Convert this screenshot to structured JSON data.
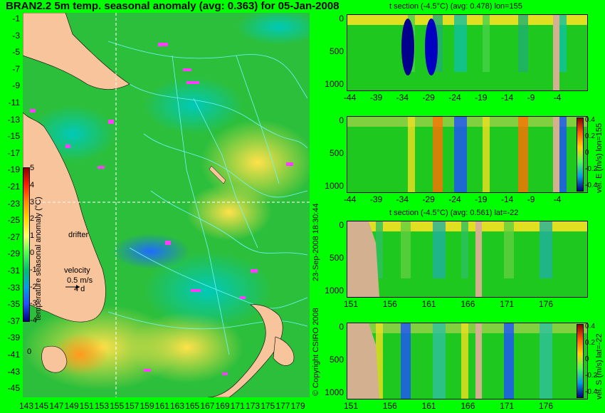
{
  "colors": {
    "background": "#00ff00",
    "land": "#f7c49b",
    "contour": "#6ff5ff",
    "magenta": "#ff3cff",
    "ocean_base": "#2dbf3a"
  },
  "map": {
    "title": "BRAN2.2 5m temp. seasonal anomaly (avg: 0.363) for 05-Jan-2008",
    "lat_labels": [
      "-1",
      "-3",
      "-5",
      "-7",
      "-9",
      "-11",
      "-13",
      "-15",
      "-17",
      "-19",
      "-21",
      "-23",
      "-25",
      "-27",
      "-29",
      "-31",
      "-33",
      "-35",
      "-37",
      "-39",
      "-41",
      "-43",
      "-45"
    ],
    "lon_labels": [
      "143",
      "145",
      "147",
      "149",
      "151",
      "153",
      "155",
      "157",
      "159",
      "161",
      "163",
      "165",
      "167",
      "169",
      "171",
      "173",
      "175",
      "177",
      "179"
    ],
    "drifter_label": "drifter",
    "velocity_label": "velocity",
    "velocity_value": "0.5 m/s",
    "velocity_days": "4 d",
    "marker_0": "0"
  },
  "colorbar": {
    "label": "temperature seasonal anomaly (°C)",
    "ticks": [
      "5",
      "4",
      "3",
      "2",
      "1",
      "0",
      "-1",
      "-2",
      "-3",
      "-4"
    ]
  },
  "right_colorbar_ticks": [
    "0.4",
    "0.2",
    "0",
    "-0.2",
    "-0.4"
  ],
  "panels": [
    {
      "title": "t section (-4.5°C) (avg: 0.478) lon=155",
      "y_ticks": [
        "0",
        "500",
        "1000"
      ],
      "x_ticks": [
        "-44",
        "-39",
        "-34",
        "-29",
        "-24",
        "-19",
        "-14",
        "-9",
        "-4"
      ],
      "side_label": ""
    },
    {
      "title": "",
      "y_ticks": [
        "0",
        "500",
        "1000"
      ],
      "x_ticks": [
        "-44",
        "-39",
        "-34",
        "-29",
        "-24",
        "-19",
        "-14",
        "-9",
        "-4"
      ],
      "side_label": "vel. E (m/s) lon=155"
    },
    {
      "title": "t section (-4.5°C) (avg: 0.561) lat=-22",
      "y_ticks": [
        "0",
        "500",
        "1000"
      ],
      "x_ticks": [
        "151",
        "156",
        "161",
        "166",
        "171",
        "176"
      ],
      "side_label": ""
    },
    {
      "title": "",
      "y_ticks": [
        "0",
        "500",
        "1000"
      ],
      "x_ticks": [
        "151",
        "156",
        "161",
        "166",
        "171",
        "176"
      ],
      "side_label": "vel. S (m/s) lat=-22"
    }
  ],
  "footer": {
    "timestamp": "23-Sep-2008 18:30:44",
    "copyright": "© Copyright CSIRO 2008"
  },
  "chart_data": [
    {
      "type": "heatmap",
      "title": "BRAN2.2 5m temp. seasonal anomaly (avg: 0.363) for 05-Jan-2008",
      "xlabel": "",
      "ylabel": "",
      "xlim": [
        143,
        180
      ],
      "ylim": [
        -45,
        0
      ],
      "colorbar_range": [
        -4,
        5
      ],
      "colorbar_label": "temperature seasonal anomaly (°C)"
    },
    {
      "type": "heatmap",
      "title": "t section (-4.5°C) (avg: 0.478) lon=155",
      "xlim": [
        -45,
        0
      ],
      "ylim": [
        1050,
        0
      ],
      "x_ticks": [
        -44,
        -39,
        -34,
        -29,
        -24,
        -19,
        -14,
        -9,
        -4
      ],
      "y_ticks": [
        0,
        500,
        1000
      ]
    },
    {
      "type": "heatmap",
      "title": "",
      "xlim": [
        -45,
        0
      ],
      "ylim": [
        1050,
        0
      ],
      "colorbar_range": [
        -0.4,
        0.4
      ],
      "colorbar_label": "vel. E (m/s) lon=155"
    },
    {
      "type": "heatmap",
      "title": "t section (-4.5°C) (avg: 0.561) lat=-22",
      "xlim": [
        150,
        180
      ],
      "ylim": [
        1050,
        0
      ],
      "x_ticks": [
        151,
        156,
        161,
        166,
        171,
        176
      ],
      "y_ticks": [
        0,
        500,
        1000
      ]
    },
    {
      "type": "heatmap",
      "title": "",
      "xlim": [
        150,
        180
      ],
      "ylim": [
        1050,
        0
      ],
      "colorbar_range": [
        -0.4,
        0.4
      ],
      "colorbar_label": "vel. S (m/s) lat=-22"
    }
  ]
}
